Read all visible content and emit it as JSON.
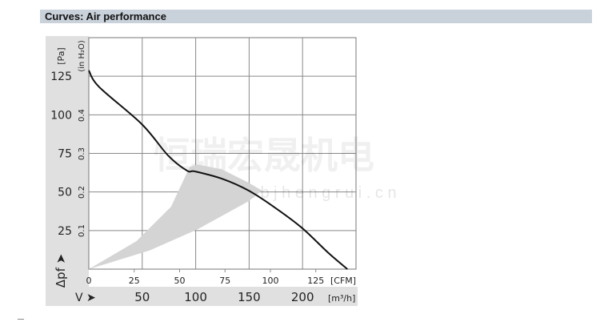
{
  "header": {
    "title": "Curves: Air performance"
  },
  "watermark": {
    "cn": "恒瑞宏晟机电",
    "url": "w w w . b j h e n g r u i . c n"
  },
  "chart_data": {
    "type": "line",
    "title": "Curves: Air performance",
    "x_primary": {
      "label": "V ➤",
      "unit": "[m³/h]",
      "range": [
        0,
        250
      ],
      "ticks": [
        50,
        100,
        150,
        200
      ]
    },
    "x_secondary": {
      "unit": "[CFM]",
      "ticks": [
        0,
        25,
        50,
        75,
        100,
        125
      ]
    },
    "y_primary": {
      "label": "Δpf ➤",
      "unit": "[Pa]",
      "range": [
        0,
        150
      ],
      "ticks": [
        25,
        50,
        75,
        100,
        125
      ]
    },
    "y_secondary": {
      "unit": "(in H₂O)",
      "ticks": [
        "0.1",
        "0.2",
        "0.3",
        "0.4"
      ]
    },
    "grid": true,
    "series": [
      {
        "points": [
          [
            0,
            128.8
          ],
          [
            9.75,
            118
          ],
          [
            49.5,
            94
          ],
          [
            74.5,
            73.4
          ],
          [
            92,
            63.8
          ],
          [
            99.5,
            63.3
          ],
          [
            124.5,
            58.6
          ],
          [
            149.5,
            50.9
          ],
          [
            174.5,
            39.7
          ],
          [
            199.5,
            26.7
          ],
          [
            224.5,
            10.3
          ],
          [
            242,
            0
          ]
        ],
        "color": "#111111"
      }
    ],
    "shaded_region": {
      "points": [
        [
          0,
          0
        ],
        [
          44.5,
          18.1
        ],
        [
          77,
          40.5
        ],
        [
          94.5,
          66.4
        ],
        [
          102,
          67.8
        ],
        [
          124.5,
          64.7
        ],
        [
          149.5,
          56
        ],
        [
          162,
          50.9
        ],
        [
          149.5,
          44
        ],
        [
          102,
          25.9
        ],
        [
          57,
          12.1
        ],
        [
          0,
          0
        ]
      ],
      "color": "#d4d4d4"
    },
    "panel_color": "#e0e0e0"
  }
}
